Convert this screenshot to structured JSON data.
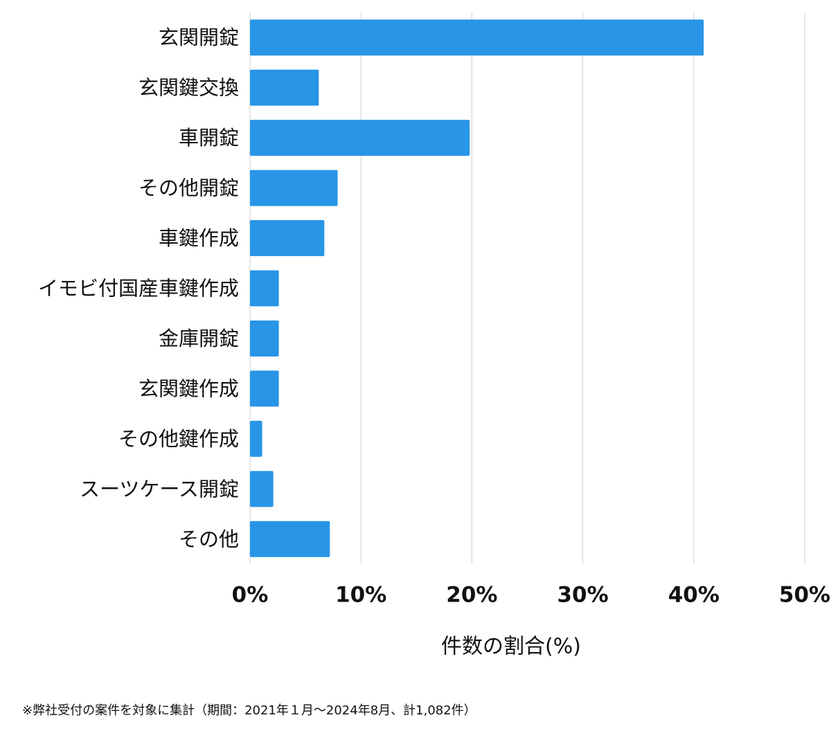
{
  "chart_data": {
    "type": "bar",
    "orientation": "horizontal",
    "categories": [
      "玄関開錠",
      "玄関鍵交換",
      "車開錠",
      "その他開錠",
      "車鍵作成",
      "イモビ付国産車鍵作成",
      "金庫開錠",
      "玄関鍵作成",
      "その他鍵作成",
      "スーツケース開錠",
      "その他"
    ],
    "values": [
      40.9,
      6.2,
      19.8,
      7.9,
      6.7,
      2.6,
      2.6,
      2.6,
      1.1,
      2.1,
      7.2
    ],
    "color": "#2895e6",
    "xlim": [
      0,
      50
    ],
    "xticks": [
      {
        "value": 0,
        "label": "0%"
      },
      {
        "value": 10,
        "label": "10%"
      },
      {
        "value": 20,
        "label": "20%"
      },
      {
        "value": 30,
        "label": "30%"
      },
      {
        "value": 40,
        "label": "40%"
      },
      {
        "value": 50,
        "label": "50%"
      }
    ],
    "xlabel": "件数の割合(%)",
    "grid": true
  },
  "footnote": "※弊社受付の案件を対象に集計（期間：2021年１月〜2024年8月、計1,082件）"
}
